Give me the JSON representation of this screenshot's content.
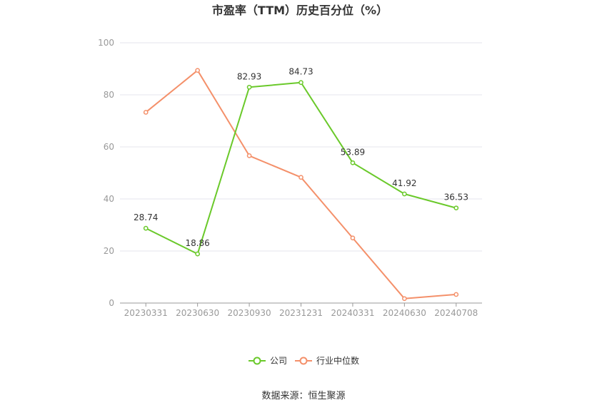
{
  "chart_data": {
    "type": "line",
    "title": "市盈率（TTM）历史百分位（%）",
    "categories": [
      "20230331",
      "20230630",
      "20230930",
      "20231231",
      "20240331",
      "20240630",
      "20240708"
    ],
    "ylim": [
      0,
      100
    ],
    "yticks": [
      "0",
      "20",
      "40",
      "60",
      "80",
      "100"
    ],
    "grid": true,
    "legend_position": "bottom",
    "series": [
      {
        "name": "公司",
        "color": "#6ac92a",
        "values": [
          28.74,
          18.86,
          82.93,
          84.73,
          53.89,
          41.92,
          36.53
        ],
        "labels": [
          "28.74",
          "18.86",
          "82.93",
          "84.73",
          "53.89",
          "41.92",
          "36.53"
        ]
      },
      {
        "name": "行业中位数",
        "color": "#f4906a",
        "values": [
          73.3,
          89.4,
          56.6,
          48.3,
          25.0,
          1.7,
          3.3
        ]
      }
    ]
  },
  "source": "数据来源：恒生聚源"
}
